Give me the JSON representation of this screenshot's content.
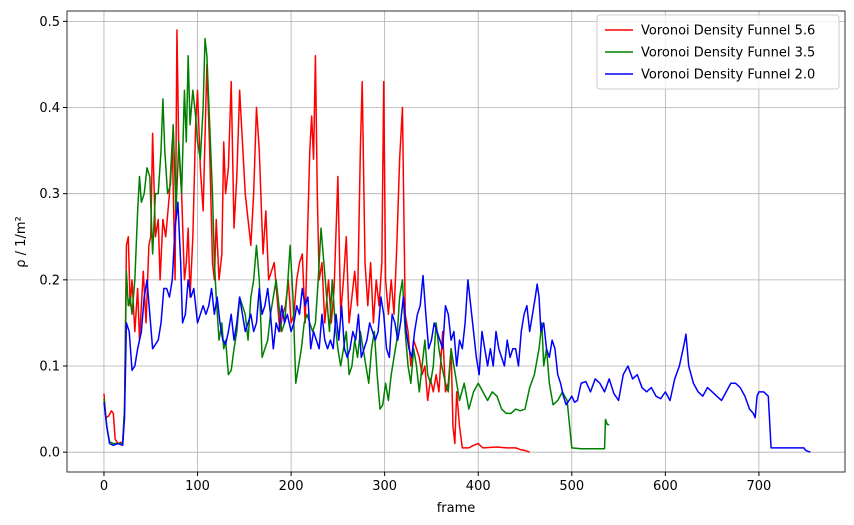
{
  "chart_data": {
    "type": "line",
    "xlabel": "frame",
    "ylabel": "ρ / 1/m²",
    "xlim": [
      -39.5,
      792
    ],
    "ylim": [
      -0.023,
      0.512
    ],
    "xticks": [
      0,
      100,
      200,
      300,
      400,
      500,
      600,
      700
    ],
    "yticks": [
      {
        "value": 0,
        "label": "0.0"
      },
      0.1,
      0.2,
      0.3,
      0.4,
      0.5
    ],
    "grid": true,
    "legend": "upper right",
    "series": [
      {
        "name": "Voronoi Density Funnel 5.6",
        "color": "#ff0000",
        "x": [
          0,
          2,
          5,
          8,
          10,
          12,
          15,
          20,
          22,
          24,
          26,
          28,
          30,
          33,
          36,
          38,
          40,
          42,
          45,
          48,
          50,
          52,
          55,
          58,
          60,
          63,
          66,
          70,
          73,
          76,
          78,
          80,
          83,
          86,
          88,
          90,
          92,
          95,
          98,
          100,
          103,
          106,
          110,
          113,
          116,
          118,
          120,
          123,
          126,
          128,
          130,
          133,
          136,
          139,
          142,
          145,
          148,
          151,
          154,
          157,
          160,
          163,
          166,
          170,
          173,
          176,
          179,
          182,
          185,
          188,
          191,
          194,
          197,
          200,
          203,
          206,
          209,
          212,
          215,
          218,
          220,
          222,
          224,
          226,
          228,
          230,
          233,
          236,
          240,
          243,
          246,
          250,
          253,
          256,
          259,
          262,
          265,
          268,
          271,
          274,
          276,
          279,
          282,
          285,
          288,
          291,
          294,
          297,
          299,
          301,
          304,
          307,
          310,
          313,
          316,
          319,
          322,
          325,
          328,
          331,
          334,
          337,
          340,
          343,
          346,
          349,
          352,
          355,
          358,
          362,
          365,
          368,
          371,
          373,
          375,
          377,
          380,
          383,
          390,
          395,
          400,
          405,
          420,
          430,
          440,
          445,
          450,
          455
        ],
        "values": [
          0.068,
          0.04,
          0.042,
          0.048,
          0.045,
          0.015,
          0.01,
          0.012,
          0.05,
          0.24,
          0.25,
          0.17,
          0.2,
          0.14,
          0.19,
          0.13,
          0.17,
          0.21,
          0.15,
          0.24,
          0.25,
          0.37,
          0.25,
          0.27,
          0.2,
          0.27,
          0.25,
          0.3,
          0.36,
          0.2,
          0.49,
          0.35,
          0.3,
          0.2,
          0.22,
          0.26,
          0.18,
          0.25,
          0.38,
          0.42,
          0.33,
          0.28,
          0.45,
          0.35,
          0.22,
          0.2,
          0.27,
          0.2,
          0.23,
          0.36,
          0.3,
          0.33,
          0.43,
          0.26,
          0.32,
          0.42,
          0.36,
          0.3,
          0.27,
          0.24,
          0.3,
          0.4,
          0.35,
          0.23,
          0.28,
          0.2,
          0.21,
          0.22,
          0.18,
          0.14,
          0.16,
          0.17,
          0.2,
          0.15,
          0.16,
          0.2,
          0.22,
          0.23,
          0.15,
          0.27,
          0.35,
          0.39,
          0.34,
          0.46,
          0.3,
          0.2,
          0.22,
          0.15,
          0.2,
          0.15,
          0.19,
          0.32,
          0.16,
          0.2,
          0.25,
          0.15,
          0.18,
          0.21,
          0.17,
          0.35,
          0.43,
          0.22,
          0.17,
          0.22,
          0.15,
          0.2,
          0.17,
          0.22,
          0.43,
          0.2,
          0.16,
          0.2,
          0.16,
          0.24,
          0.34,
          0.4,
          0.16,
          0.14,
          0.1,
          0.13,
          0.12,
          0.11,
          0.09,
          0.1,
          0.06,
          0.085,
          0.07,
          0.09,
          0.07,
          0.14,
          0.07,
          0.08,
          0.12,
          0.03,
          0.01,
          0.07,
          0.03,
          0.005,
          0.005,
          0.008,
          0.01,
          0.005,
          0.006,
          0.005,
          0.005,
          0.003,
          0.002,
          0
        ]
      },
      {
        "name": "Voronoi Density Funnel 3.5",
        "color": "#008000",
        "x": [
          0,
          3,
          6,
          10,
          15,
          20,
          22,
          24,
          26,
          28,
          30,
          33,
          36,
          38,
          40,
          43,
          46,
          49,
          52,
          55,
          58,
          61,
          63,
          65,
          68,
          71,
          74,
          77,
          80,
          83,
          86,
          88,
          90,
          92,
          95,
          98,
          100,
          103,
          106,
          108,
          110,
          113,
          116,
          118,
          120,
          123,
          126,
          128,
          130,
          133,
          136,
          139,
          142,
          145,
          148,
          151,
          154,
          157,
          160,
          163,
          166,
          169,
          172,
          175,
          178,
          181,
          184,
          187,
          190,
          193,
          196,
          199,
          202,
          205,
          208,
          211,
          214,
          217,
          220,
          223,
          226,
          229,
          232,
          235,
          238,
          241,
          244,
          247,
          250,
          253,
          256,
          259,
          262,
          265,
          268,
          271,
          274,
          277,
          280,
          283,
          286,
          289,
          292,
          295,
          298,
          301,
          304,
          307,
          310,
          313,
          316,
          319,
          322,
          325,
          328,
          331,
          334,
          337,
          340,
          343,
          346,
          349,
          352,
          355,
          358,
          361,
          365,
          368,
          371,
          374,
          377,
          380,
          385,
          390,
          395,
          400,
          405,
          410,
          415,
          420,
          425,
          430,
          435,
          440,
          445,
          450,
          455,
          460,
          465,
          468,
          470,
          473,
          476,
          480,
          485,
          490,
          495,
          500,
          510,
          520,
          530,
          535,
          536,
          538,
          540
        ],
        "values": [
          0.062,
          0.03,
          0.012,
          0.01,
          0.01,
          0.01,
          0.05,
          0.21,
          0.17,
          0.18,
          0.16,
          0.2,
          0.28,
          0.32,
          0.29,
          0.3,
          0.33,
          0.32,
          0.23,
          0.3,
          0.3,
          0.35,
          0.41,
          0.35,
          0.3,
          0.31,
          0.38,
          0.28,
          0.36,
          0.3,
          0.42,
          0.36,
          0.46,
          0.38,
          0.42,
          0.39,
          0.36,
          0.34,
          0.4,
          0.48,
          0.46,
          0.38,
          0.3,
          0.22,
          0.18,
          0.13,
          0.15,
          0.12,
          0.13,
          0.09,
          0.095,
          0.12,
          0.14,
          0.18,
          0.17,
          0.16,
          0.13,
          0.18,
          0.2,
          0.24,
          0.2,
          0.11,
          0.12,
          0.13,
          0.16,
          0.18,
          0.2,
          0.17,
          0.14,
          0.15,
          0.19,
          0.24,
          0.18,
          0.08,
          0.1,
          0.12,
          0.15,
          0.16,
          0.15,
          0.14,
          0.15,
          0.2,
          0.26,
          0.22,
          0.18,
          0.14,
          0.2,
          0.15,
          0.12,
          0.1,
          0.12,
          0.14,
          0.09,
          0.1,
          0.13,
          0.11,
          0.14,
          0.12,
          0.1,
          0.08,
          0.12,
          0.14,
          0.09,
          0.05,
          0.055,
          0.08,
          0.06,
          0.09,
          0.11,
          0.13,
          0.18,
          0.2,
          0.14,
          0.1,
          0.08,
          0.12,
          0.1,
          0.07,
          0.1,
          0.13,
          0.09,
          0.08,
          0.1,
          0.15,
          0.12,
          0.1,
          0.08,
          0.07,
          0.12,
          0.1,
          0.08,
          0.06,
          0.08,
          0.05,
          0.07,
          0.08,
          0.07,
          0.06,
          0.07,
          0.065,
          0.05,
          0.045,
          0.045,
          0.05,
          0.048,
          0.05,
          0.075,
          0.09,
          0.12,
          0.15,
          0.1,
          0.12,
          0.08,
          0.055,
          0.06,
          0.07,
          0.06,
          0.005,
          0.004,
          0.004,
          0.004,
          0.004,
          0.038,
          0.032,
          0.032
        ]
      },
      {
        "name": "Voronoi Density Funnel 2.0",
        "color": "#0000ff",
        "x": [
          0,
          3,
          6,
          10,
          15,
          20,
          22,
          24,
          27,
          30,
          33,
          36,
          40,
          43,
          46,
          49,
          52,
          55,
          58,
          61,
          64,
          67,
          70,
          73,
          76,
          79,
          82,
          84,
          87,
          90,
          93,
          96,
          100,
          103,
          106,
          109,
          112,
          115,
          118,
          121,
          124,
          127,
          130,
          133,
          136,
          139,
          142,
          145,
          148,
          151,
          154,
          157,
          160,
          163,
          166,
          169,
          172,
          175,
          178,
          181,
          184,
          187,
          190,
          193,
          196,
          200,
          203,
          206,
          209,
          212,
          215,
          218,
          221,
          224,
          227,
          230,
          233,
          236,
          239,
          242,
          245,
          248,
          251,
          254,
          257,
          260,
          263,
          266,
          269,
          272,
          275,
          278,
          281,
          284,
          287,
          290,
          293,
          296,
          299,
          302,
          305,
          308,
          311,
          314,
          317,
          320,
          323,
          326,
          329,
          332,
          335,
          338,
          341,
          344,
          347,
          350,
          353,
          356,
          359,
          362,
          365,
          368,
          371,
          374,
          377,
          380,
          383,
          386,
          389,
          392,
          395,
          398,
          401,
          404,
          407,
          410,
          413,
          416,
          419,
          422,
          425,
          428,
          431,
          434,
          437,
          440,
          443,
          446,
          449,
          452,
          455,
          458,
          461,
          463,
          465,
          467,
          470,
          473,
          476,
          479,
          482,
          485,
          488,
          491,
          494,
          497,
          500,
          503,
          506,
          510,
          515,
          520,
          525,
          530,
          535,
          540,
          545,
          550,
          555,
          560,
          565,
          570,
          575,
          580,
          585,
          590,
          595,
          600,
          605,
          610,
          615,
          620,
          622,
          625,
          630,
          635,
          640,
          645,
          650,
          655,
          660,
          665,
          670,
          675,
          680,
          685,
          690,
          694,
          696,
          698,
          700,
          705,
          710,
          713,
          720,
          730,
          740,
          748,
          750,
          755
        ],
        "values": [
          0.058,
          0.03,
          0.01,
          0.008,
          0.01,
          0.008,
          0.04,
          0.15,
          0.14,
          0.095,
          0.1,
          0.12,
          0.14,
          0.18,
          0.2,
          0.16,
          0.12,
          0.125,
          0.13,
          0.15,
          0.19,
          0.19,
          0.18,
          0.2,
          0.26,
          0.29,
          0.22,
          0.15,
          0.16,
          0.2,
          0.18,
          0.19,
          0.15,
          0.16,
          0.17,
          0.16,
          0.17,
          0.19,
          0.16,
          0.18,
          0.15,
          0.13,
          0.125,
          0.14,
          0.16,
          0.13,
          0.15,
          0.18,
          0.16,
          0.14,
          0.15,
          0.16,
          0.14,
          0.15,
          0.19,
          0.16,
          0.17,
          0.19,
          0.16,
          0.12,
          0.15,
          0.14,
          0.17,
          0.15,
          0.16,
          0.14,
          0.15,
          0.17,
          0.16,
          0.19,
          0.17,
          0.18,
          0.12,
          0.14,
          0.13,
          0.12,
          0.16,
          0.13,
          0.12,
          0.13,
          0.12,
          0.16,
          0.13,
          0.17,
          0.12,
          0.11,
          0.12,
          0.14,
          0.13,
          0.16,
          0.11,
          0.12,
          0.13,
          0.15,
          0.14,
          0.13,
          0.14,
          0.18,
          0.16,
          0.12,
          0.11,
          0.16,
          0.15,
          0.13,
          0.15,
          0.18,
          0.14,
          0.12,
          0.11,
          0.14,
          0.16,
          0.17,
          0.205,
          0.16,
          0.12,
          0.13,
          0.15,
          0.14,
          0.13,
          0.12,
          0.17,
          0.16,
          0.13,
          0.14,
          0.1,
          0.13,
          0.12,
          0.15,
          0.2,
          0.17,
          0.14,
          0.11,
          0.09,
          0.14,
          0.12,
          0.1,
          0.12,
          0.1,
          0.14,
          0.12,
          0.11,
          0.1,
          0.13,
          0.11,
          0.12,
          0.12,
          0.1,
          0.14,
          0.16,
          0.17,
          0.14,
          0.16,
          0.18,
          0.195,
          0.18,
          0.14,
          0.15,
          0.12,
          0.11,
          0.13,
          0.12,
          0.09,
          0.08,
          0.065,
          0.055,
          0.06,
          0.065,
          0.058,
          0.06,
          0.08,
          0.082,
          0.07,
          0.085,
          0.08,
          0.07,
          0.085,
          0.068,
          0.06,
          0.09,
          0.1,
          0.085,
          0.09,
          0.075,
          0.07,
          0.075,
          0.065,
          0.062,
          0.07,
          0.06,
          0.085,
          0.1,
          0.125,
          0.137,
          0.1,
          0.08,
          0.07,
          0.065,
          0.075,
          0.07,
          0.065,
          0.06,
          0.07,
          0.08,
          0.08,
          0.075,
          0.065,
          0.05,
          0.045,
          0.04,
          0.065,
          0.07,
          0.07,
          0.065,
          0.005,
          0.005,
          0.005,
          0.005,
          0.005,
          0.002,
          0
        ]
      }
    ]
  }
}
